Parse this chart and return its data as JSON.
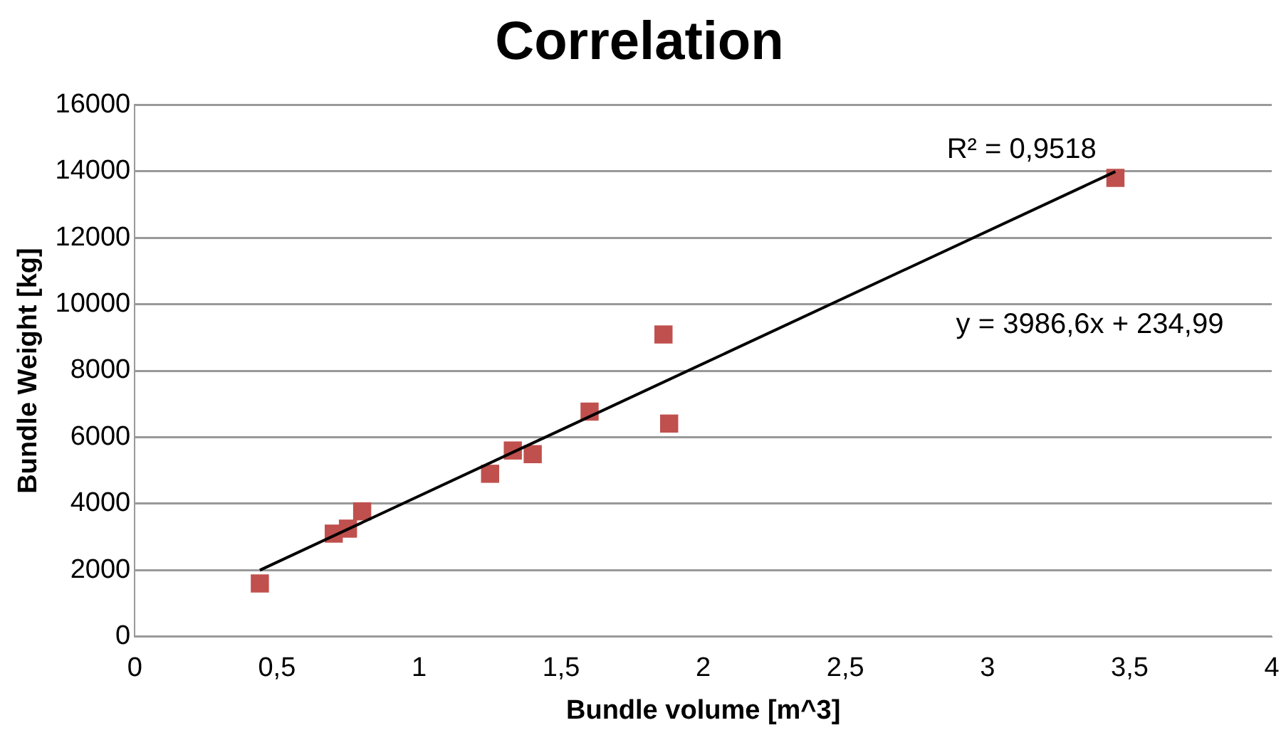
{
  "chart_data": {
    "type": "scatter",
    "title": "Correlation",
    "xlabel": "Bundle volume [m^3]",
    "ylabel": "Bundle Weight [kg]",
    "xlim": [
      0,
      4
    ],
    "xticks": [
      0,
      {
        "value": 0.5,
        "label": "0,5"
      },
      1,
      {
        "value": 1.5,
        "label": "1,5"
      },
      2,
      {
        "value": 2.5,
        "label": "2,5"
      },
      3,
      {
        "value": 3.5,
        "label": "3,5"
      },
      4
    ],
    "ylim": [
      0,
      16000
    ],
    "yticks": [
      0,
      2000,
      4000,
      6000,
      8000,
      10000,
      12000,
      14000,
      16000
    ],
    "grid": "y",
    "legend": false,
    "series": [
      {
        "marker": "square",
        "color": "#c0504d",
        "x": [
          0.44,
          0.7,
          0.75,
          0.8,
          1.25,
          1.33,
          1.4,
          1.6,
          1.86,
          1.88,
          3.45
        ],
        "values": [
          1600,
          3100,
          3250,
          3770,
          4900,
          5600,
          5490,
          6770,
          9090,
          6410,
          13800
        ]
      },
      {
        "type": "line",
        "marker": "none",
        "color": "#000000",
        "x": [
          0.44,
          3.45
        ],
        "values": [
          2000,
          13990
        ]
      }
    ],
    "annotations": [
      "R² = 0,9518",
      "y = 3986,6x + 234,99"
    ]
  }
}
